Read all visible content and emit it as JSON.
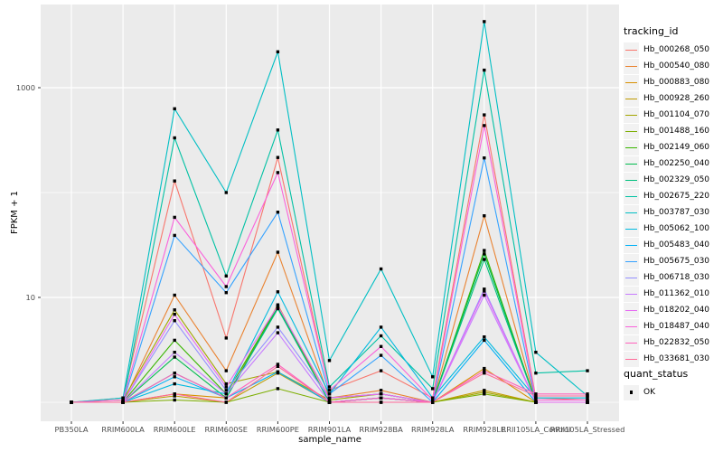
{
  "style": {
    "background": "#FFFFFF",
    "panel_bg": "#EBEBEB",
    "grid_color": "#FFFFFF",
    "point_color": "#000000",
    "tick_color": "#333333",
    "tick_text_color": "#4D4D4D",
    "axis_title_color": "#000000",
    "legend_key_bg": "#F2F2F2"
  },
  "chart_data": {
    "type": "line",
    "title": "",
    "xlabel": "sample_name",
    "ylabel": "FPKM + 1",
    "y_scale": "log10",
    "grid": true,
    "legend_position": "right",
    "legend_title": "tracking_id",
    "quant_status": {
      "title": "quant_status",
      "items": [
        "OK"
      ]
    },
    "y_ticks": [
      {
        "label": "10",
        "value": 10
      },
      {
        "label": "1000",
        "value": 1000
      }
    ],
    "y_minor_gridlines": [
      1,
      100
    ],
    "ylim": [
      1,
      5000
    ],
    "categories": [
      "PB350LA",
      "RRIM600LA",
      "RRIM600LE",
      "RRIM600SE",
      "RRIM600PE",
      "RRIM901LA",
      "RRIM928BA",
      "RRIM928LA",
      "RRIM928LE",
      "RRII105LA_Control",
      "RRII105LA_Stressed"
    ],
    "series": [
      {
        "name": "Hb_000268_050",
        "color": "#F8766D",
        "values": [
          1.0,
          1.1,
          129,
          4.1,
          216,
          1.3,
          2.0,
          1.1,
          550,
          1.1,
          1.05
        ]
      },
      {
        "name": "Hb_000540_080",
        "color": "#EA8331",
        "values": [
          1.0,
          1.0,
          10.5,
          2.0,
          27,
          1.1,
          1.3,
          1.0,
          60,
          1.0,
          1.0
        ]
      },
      {
        "name": "Hb_000883_080",
        "color": "#D89000",
        "values": [
          1.0,
          1.0,
          1.2,
          1.1,
          8.5,
          1.0,
          1.1,
          1.0,
          2.1,
          1.0,
          1.0
        ]
      },
      {
        "name": "Hb_000928_260",
        "color": "#C09B00",
        "values": [
          1.0,
          1.0,
          1.15,
          1.0,
          1.9,
          1.0,
          1.0,
          1.0,
          1.3,
          1.0,
          1.0
        ]
      },
      {
        "name": "Hb_001104_070",
        "color": "#A3A500",
        "values": [
          1.0,
          1.05,
          7.6,
          1.5,
          1.95,
          1.05,
          1.2,
          1.0,
          1.25,
          1.0,
          1.0
        ]
      },
      {
        "name": "Hb_001488_160",
        "color": "#7CAE00",
        "values": [
          1.0,
          1.0,
          1.05,
          1.0,
          1.35,
          1.0,
          1.0,
          1.0,
          1.2,
          1.0,
          1.0
        ]
      },
      {
        "name": "Hb_002149_060",
        "color": "#39B600",
        "values": [
          1.0,
          1.0,
          3.9,
          1.2,
          8.2,
          1.1,
          1.2,
          1.0,
          28,
          1.0,
          1.0
        ]
      },
      {
        "name": "Hb_002250_040",
        "color": "#00BB4E",
        "values": [
          1.0,
          1.0,
          2.7,
          1.1,
          8.0,
          1.0,
          1.1,
          1.0,
          26,
          1.0,
          1.0
        ]
      },
      {
        "name": "Hb_002329_050",
        "color": "#00BF7D",
        "values": [
          1.0,
          1.0,
          1.9,
          1.1,
          7.8,
          1.0,
          1.1,
          1.0,
          23,
          1.0,
          1.0
        ]
      },
      {
        "name": "Hb_002675_220",
        "color": "#00C1A3",
        "values": [
          1.0,
          1.0,
          332,
          16,
          395,
          1.4,
          4.3,
          1.35,
          1470,
          1.9,
          2.0
        ]
      },
      {
        "name": "Hb_003787_030",
        "color": "#00BFC4",
        "values": [
          1.0,
          1.1,
          630,
          100,
          2200,
          2.5,
          18.7,
          1.75,
          4270,
          3.0,
          1.15
        ]
      },
      {
        "name": "Hb_005062_100",
        "color": "#00BAE0",
        "values": [
          1.0,
          1.0,
          1.5,
          1.2,
          11.3,
          1.2,
          5.2,
          1.1,
          4.2,
          1.1,
          1.1
        ]
      },
      {
        "name": "Hb_005483_040",
        "color": "#00B0F6",
        "values": [
          1.0,
          1.0,
          1.75,
          1.1,
          1.95,
          1.0,
          1.1,
          1.0,
          3.9,
          1.0,
          1.0
        ]
      },
      {
        "name": "Hb_005675_030",
        "color": "#35A2FF",
        "values": [
          1.0,
          1.0,
          39,
          11.1,
          65,
          1.2,
          2.8,
          1.0,
          214,
          1.0,
          1.0
        ]
      },
      {
        "name": "Hb_006718_030",
        "color": "#9590FF",
        "values": [
          1.0,
          1.0,
          6.0,
          1.3,
          5.2,
          1.1,
          1.2,
          1.0,
          12,
          1.0,
          1.0
        ]
      },
      {
        "name": "Hb_011362_010",
        "color": "#C77CFF",
        "values": [
          1.0,
          1.0,
          3.0,
          1.2,
          4.6,
          1.0,
          1.1,
          1.0,
          10.5,
          1.0,
          1.0
        ]
      },
      {
        "name": "Hb_018202_040",
        "color": "#E76BF3",
        "values": [
          1.0,
          1.0,
          6.9,
          1.4,
          8.3,
          1.1,
          1.2,
          1.0,
          11.5,
          1.0,
          1.0
        ]
      },
      {
        "name": "Hb_018487_040",
        "color": "#FA62DB",
        "values": [
          1.0,
          1.05,
          58,
          12.7,
          155,
          1.3,
          3.4,
          1.05,
          435,
          1.05,
          1.05
        ]
      },
      {
        "name": "Hb_022832_050",
        "color": "#FF62BC",
        "values": [
          1.0,
          1.0,
          1.9,
          1.1,
          2.3,
          1.0,
          1.1,
          1.0,
          2.0,
          1.2,
          1.2
        ]
      },
      {
        "name": "Hb_033681_030",
        "color": "#FF6A98",
        "values": [
          1.0,
          1.0,
          1.2,
          1.0,
          2.2,
          1.0,
          1.0,
          1.0,
          1.9,
          1.15,
          1.15
        ]
      }
    ]
  }
}
